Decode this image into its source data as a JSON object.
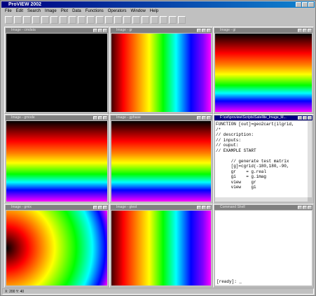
{
  "app": {
    "title": "ProVIEW 2002",
    "menu": [
      "File",
      "Edit",
      "Search",
      "Image",
      "Plot",
      "Data",
      "Functions",
      "Operators",
      "Window",
      "Help"
    ],
    "windows": [
      {
        "title": "Image - cmdata"
      },
      {
        "title": "Image - gr"
      },
      {
        "title": "Image - gi"
      },
      {
        "title": "Image - gmode"
      },
      {
        "title": "Image - gphase"
      },
      {
        "title": "F:\\cet\\proview\\Scripts\\Satellite_Image_M...",
        "lines": [
          "FUNCTION [out]=geo2cart(ilgrid,",
          "/*",
          "// description:",
          "// inputs:",
          "// ouput:",
          "// EXAMPLE START",
          "",
          "      // generate test matrix",
          "      [g]=cgrid(-180,180,-90,",
          "      gr    = g.real",
          "      gi    = g.imag",
          "      view    gr",
          "      view    gi"
        ]
      },
      {
        "title": "Image - gmix"
      },
      {
        "title": "Image - gtest"
      },
      {
        "title": "Command Shell",
        "prompt": "[ready]: _"
      }
    ],
    "status": "X: 200  Y: 40"
  }
}
